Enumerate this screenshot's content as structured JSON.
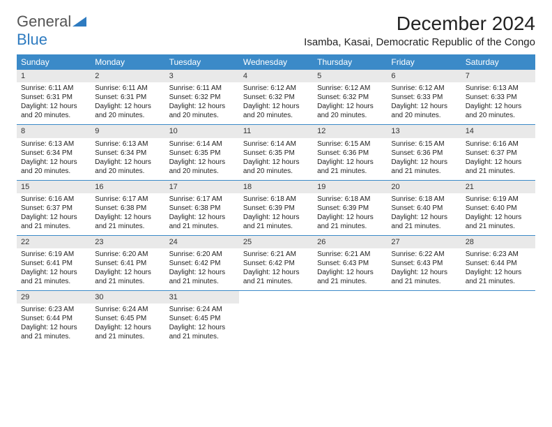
{
  "logo": {
    "part1": "General",
    "part2": "Blue"
  },
  "title": "December 2024",
  "location": "Isamba, Kasai, Democratic Republic of the Congo",
  "colors": {
    "header_bg": "#3b8ac8",
    "header_text": "#ffffff",
    "daynum_bg": "#e9e9e9",
    "week_border": "#3b8ac8",
    "logo_gray": "#555555",
    "logo_blue": "#2e7bc0",
    "page_bg": "#ffffff"
  },
  "day_names": [
    "Sunday",
    "Monday",
    "Tuesday",
    "Wednesday",
    "Thursday",
    "Friday",
    "Saturday"
  ],
  "weeks": [
    [
      {
        "n": "1",
        "sr": "6:11 AM",
        "ss": "6:31 PM",
        "dl": "12 hours and 20 minutes."
      },
      {
        "n": "2",
        "sr": "6:11 AM",
        "ss": "6:31 PM",
        "dl": "12 hours and 20 minutes."
      },
      {
        "n": "3",
        "sr": "6:11 AM",
        "ss": "6:32 PM",
        "dl": "12 hours and 20 minutes."
      },
      {
        "n": "4",
        "sr": "6:12 AM",
        "ss": "6:32 PM",
        "dl": "12 hours and 20 minutes."
      },
      {
        "n": "5",
        "sr": "6:12 AM",
        "ss": "6:32 PM",
        "dl": "12 hours and 20 minutes."
      },
      {
        "n": "6",
        "sr": "6:12 AM",
        "ss": "6:33 PM",
        "dl": "12 hours and 20 minutes."
      },
      {
        "n": "7",
        "sr": "6:13 AM",
        "ss": "6:33 PM",
        "dl": "12 hours and 20 minutes."
      }
    ],
    [
      {
        "n": "8",
        "sr": "6:13 AM",
        "ss": "6:34 PM",
        "dl": "12 hours and 20 minutes."
      },
      {
        "n": "9",
        "sr": "6:13 AM",
        "ss": "6:34 PM",
        "dl": "12 hours and 20 minutes."
      },
      {
        "n": "10",
        "sr": "6:14 AM",
        "ss": "6:35 PM",
        "dl": "12 hours and 20 minutes."
      },
      {
        "n": "11",
        "sr": "6:14 AM",
        "ss": "6:35 PM",
        "dl": "12 hours and 20 minutes."
      },
      {
        "n": "12",
        "sr": "6:15 AM",
        "ss": "6:36 PM",
        "dl": "12 hours and 21 minutes."
      },
      {
        "n": "13",
        "sr": "6:15 AM",
        "ss": "6:36 PM",
        "dl": "12 hours and 21 minutes."
      },
      {
        "n": "14",
        "sr": "6:16 AM",
        "ss": "6:37 PM",
        "dl": "12 hours and 21 minutes."
      }
    ],
    [
      {
        "n": "15",
        "sr": "6:16 AM",
        "ss": "6:37 PM",
        "dl": "12 hours and 21 minutes."
      },
      {
        "n": "16",
        "sr": "6:17 AM",
        "ss": "6:38 PM",
        "dl": "12 hours and 21 minutes."
      },
      {
        "n": "17",
        "sr": "6:17 AM",
        "ss": "6:38 PM",
        "dl": "12 hours and 21 minutes."
      },
      {
        "n": "18",
        "sr": "6:18 AM",
        "ss": "6:39 PM",
        "dl": "12 hours and 21 minutes."
      },
      {
        "n": "19",
        "sr": "6:18 AM",
        "ss": "6:39 PM",
        "dl": "12 hours and 21 minutes."
      },
      {
        "n": "20",
        "sr": "6:18 AM",
        "ss": "6:40 PM",
        "dl": "12 hours and 21 minutes."
      },
      {
        "n": "21",
        "sr": "6:19 AM",
        "ss": "6:40 PM",
        "dl": "12 hours and 21 minutes."
      }
    ],
    [
      {
        "n": "22",
        "sr": "6:19 AM",
        "ss": "6:41 PM",
        "dl": "12 hours and 21 minutes."
      },
      {
        "n": "23",
        "sr": "6:20 AM",
        "ss": "6:41 PM",
        "dl": "12 hours and 21 minutes."
      },
      {
        "n": "24",
        "sr": "6:20 AM",
        "ss": "6:42 PM",
        "dl": "12 hours and 21 minutes."
      },
      {
        "n": "25",
        "sr": "6:21 AM",
        "ss": "6:42 PM",
        "dl": "12 hours and 21 minutes."
      },
      {
        "n": "26",
        "sr": "6:21 AM",
        "ss": "6:43 PM",
        "dl": "12 hours and 21 minutes."
      },
      {
        "n": "27",
        "sr": "6:22 AM",
        "ss": "6:43 PM",
        "dl": "12 hours and 21 minutes."
      },
      {
        "n": "28",
        "sr": "6:23 AM",
        "ss": "6:44 PM",
        "dl": "12 hours and 21 minutes."
      }
    ],
    [
      {
        "n": "29",
        "sr": "6:23 AM",
        "ss": "6:44 PM",
        "dl": "12 hours and 21 minutes."
      },
      {
        "n": "30",
        "sr": "6:24 AM",
        "ss": "6:45 PM",
        "dl": "12 hours and 21 minutes."
      },
      {
        "n": "31",
        "sr": "6:24 AM",
        "ss": "6:45 PM",
        "dl": "12 hours and 21 minutes."
      },
      null,
      null,
      null,
      null
    ]
  ],
  "labels": {
    "sunrise": "Sunrise:",
    "sunset": "Sunset:",
    "daylight": "Daylight:"
  }
}
